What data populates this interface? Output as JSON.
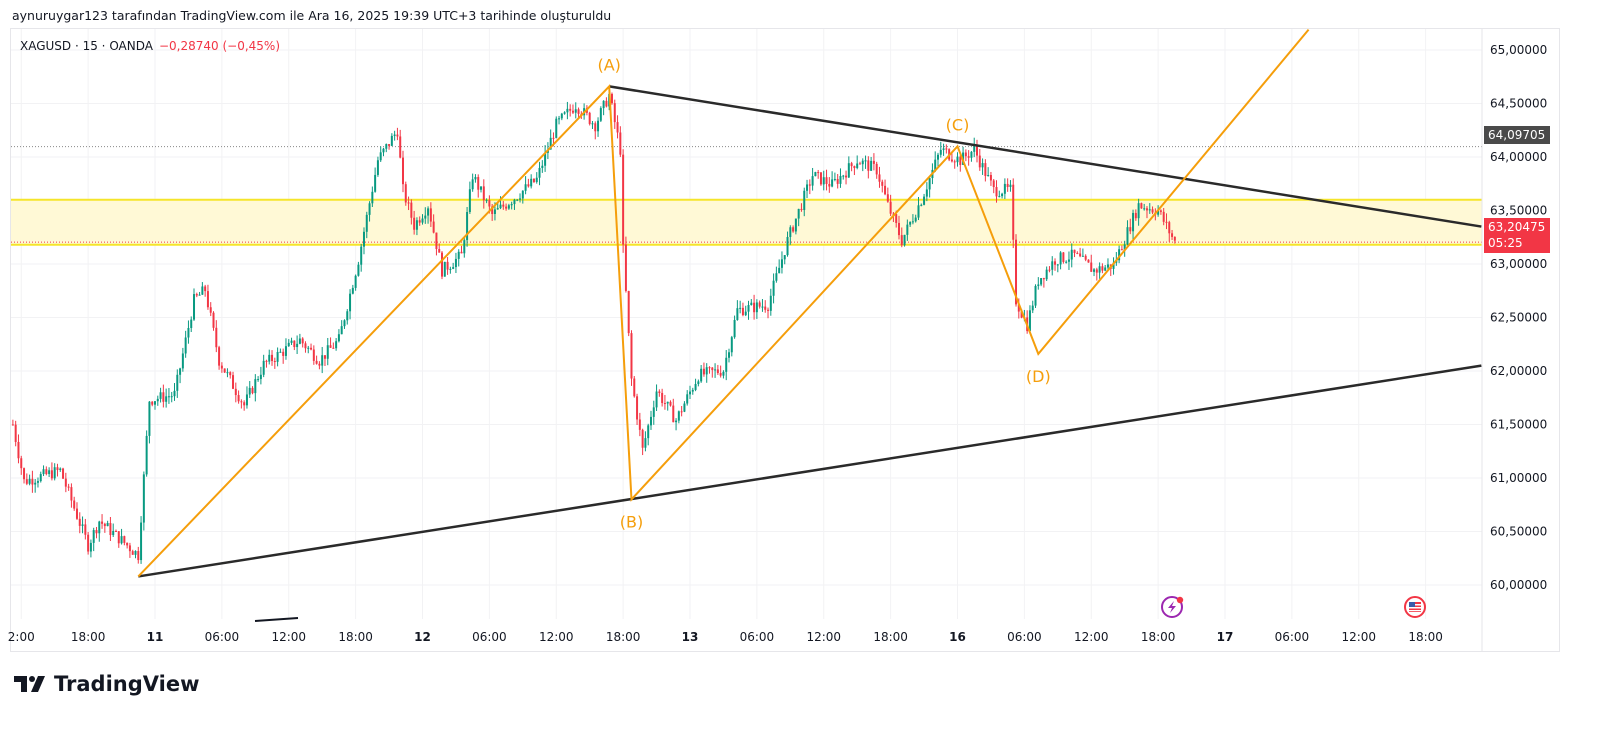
{
  "caption": "aynuruygar123 tarafından TradingView.com ile Ara 16, 2025 19:39 UTC+3 tarihinde oluşturuldu",
  "legend": {
    "symbol": "XAGUSD · 15 · OANDA",
    "change": "−0,28740 (−0,45%)"
  },
  "brand": "TradingView",
  "colors": {
    "up": "#089981",
    "down": "#f23645",
    "pattern": "#f59e0b",
    "trendline": "#2a2a2a",
    "zone_fill": "#fff9d6",
    "zone_line": "#f5e52a",
    "label_pattern": "#f59e0b"
  },
  "icons": {
    "event_1": "lightning-icon",
    "event_2": "us-flag-icon"
  },
  "chart_data": {
    "type": "candlestick",
    "symbol": "XAGUSD",
    "interval": "15",
    "ylim": [
      59.6,
      65.2
    ],
    "grid": true,
    "y_ticks": [
      "65,00000",
      "64,50000",
      "64,00000",
      "63,50000",
      "63,00000",
      "62,50000",
      "62,00000",
      "61,50000",
      "61,00000",
      "60,50000",
      "60,00000"
    ],
    "y_tick_values": [
      65,
      64.5,
      64,
      63.5,
      63,
      62.5,
      62,
      61.5,
      61,
      60.5,
      60
    ],
    "x_ticks": [
      {
        "label": "2:00",
        "t": "10 12:00"
      },
      {
        "label": "18:00",
        "t": "10 18:00"
      },
      {
        "label": "11",
        "t": "11 00:00"
      },
      {
        "label": "06:00",
        "t": "11 06:00"
      },
      {
        "label": "12:00",
        "t": "11 12:00"
      },
      {
        "label": "18:00",
        "t": "11 18:00"
      },
      {
        "label": "12",
        "t": "12 00:00"
      },
      {
        "label": "06:00",
        "t": "12 06:00"
      },
      {
        "label": "12:00",
        "t": "12 12:00"
      },
      {
        "label": "18:00",
        "t": "12 18:00"
      },
      {
        "label": "13",
        "t": "13 00:00"
      },
      {
        "label": "06:00",
        "t": "13 06:00"
      },
      {
        "label": "12:00",
        "t": "13 12:00"
      },
      {
        "label": "18:00",
        "t": "13 18:00"
      },
      {
        "label": "16",
        "t": "16 00:00"
      },
      {
        "label": "06:00",
        "t": "16 06:00"
      },
      {
        "label": "12:00",
        "t": "16 12:00"
      },
      {
        "label": "18:00",
        "t": "16 18:00"
      },
      {
        "label": "17",
        "t": "17 00:00"
      },
      {
        "label": "06:00",
        "t": "17 06:00"
      },
      {
        "label": "12:00",
        "t": "17 12:00"
      },
      {
        "label": "18:00",
        "t": "17 18:00"
      }
    ],
    "price_path": [
      [
        "10 11:15",
        61.5
      ],
      [
        "10 12:15",
        60.97
      ],
      [
        "10 15:30",
        61.07
      ],
      [
        "10 18:00",
        60.37
      ],
      [
        "10 19:00",
        60.6
      ],
      [
        "10 22:30",
        60.28
      ],
      [
        "10 23:30",
        61.73
      ],
      [
        "11 01:45",
        61.78
      ],
      [
        "11 03:30",
        62.66
      ],
      [
        "11 04:30",
        62.76
      ],
      [
        "11 05:45",
        62.1
      ],
      [
        "11 08:00",
        61.68
      ],
      [
        "11 09:45",
        62.06
      ],
      [
        "11 13:00",
        62.29
      ],
      [
        "11 14:45",
        62.1
      ],
      [
        "11 16:30",
        62.29
      ],
      [
        "11 18:15",
        63.04
      ],
      [
        "11 20:00",
        63.97
      ],
      [
        "11 21:45",
        64.25
      ],
      [
        "11 22:15",
        63.69
      ],
      [
        "11 23:15",
        63.36
      ],
      [
        "12 00:30",
        63.55
      ],
      [
        "12 01:45",
        62.94
      ],
      [
        "12 03:30",
        63.08
      ],
      [
        "12 04:30",
        63.83
      ],
      [
        "12 06:15",
        63.46
      ],
      [
        "12 08:30",
        63.64
      ],
      [
        "12 10:15",
        63.79
      ],
      [
        "12 12:00",
        64.3
      ],
      [
        "12 13:45",
        64.49
      ],
      [
        "12 15:30",
        64.3
      ],
      [
        "12 16:45",
        64.58
      ],
      [
        "12 17:45",
        64.07
      ],
      [
        "12 18:00",
        63.13
      ],
      [
        "12 18:45",
        61.92
      ],
      [
        "12 19:45",
        61.26
      ],
      [
        "12 21:00",
        61.82
      ],
      [
        "12 22:45",
        61.54
      ],
      [
        "13 00:45",
        61.96
      ],
      [
        "13 03:00",
        62.01
      ],
      [
        "13 04:15",
        62.57
      ],
      [
        "13 07:00",
        62.62
      ],
      [
        "13 08:45",
        63.22
      ],
      [
        "13 11:00",
        63.83
      ],
      [
        "13 12:45",
        63.74
      ],
      [
        "13 15:00",
        63.97
      ],
      [
        "13 16:45",
        63.88
      ],
      [
        "13 17:45",
        63.55
      ],
      [
        "13 19:00",
        63.22
      ],
      [
        "13 20:45",
        63.6
      ],
      [
        "13 22:30",
        64.07
      ],
      [
        "16 00:15",
        63.97
      ],
      [
        "16 01:30",
        64.07
      ],
      [
        "16 03:15",
        63.69
      ],
      [
        "16 04:45",
        63.69
      ],
      [
        "16 05:15",
        62.66
      ],
      [
        "16 06:15",
        62.43
      ],
      [
        "16 07:15",
        62.85
      ],
      [
        "16 08:45",
        63.04
      ],
      [
        "16 10:30",
        63.08
      ],
      [
        "16 12:15",
        62.94
      ],
      [
        "16 14:00",
        62.99
      ],
      [
        "16 16:15",
        63.55
      ],
      [
        "16 18:00",
        63.5
      ],
      [
        "16 19:30",
        63.20475
      ]
    ],
    "last_price": "63,20475",
    "countdown": "05:25",
    "high_marker": "64,09705",
    "zone": {
      "top": 63.6,
      "bottom": 63.18
    },
    "pattern_points": [
      {
        "label": "",
        "t": "10 22:30",
        "p": 60.08
      },
      {
        "label": "(A)",
        "t": "12 16:45",
        "p": 64.66
      },
      {
        "label": "(B)",
        "t": "12 18:45",
        "p": 60.8
      },
      {
        "label": "(C)",
        "t": "16 00:00",
        "p": 64.1
      },
      {
        "label": "(D)",
        "t": "16 07:15",
        "p": 62.16
      },
      {
        "label": "",
        "t": "17 07:30",
        "p": 65.19
      }
    ],
    "trendlines": [
      {
        "from": {
          "t": "12 16:45",
          "p": 64.66
        },
        "to": {
          "t": "17 23:00",
          "p": 63.35
        }
      },
      {
        "from": {
          "t": "10 22:30",
          "p": 60.08
        },
        "to": {
          "t": "17 23:00",
          "p": 62.05
        }
      }
    ]
  }
}
